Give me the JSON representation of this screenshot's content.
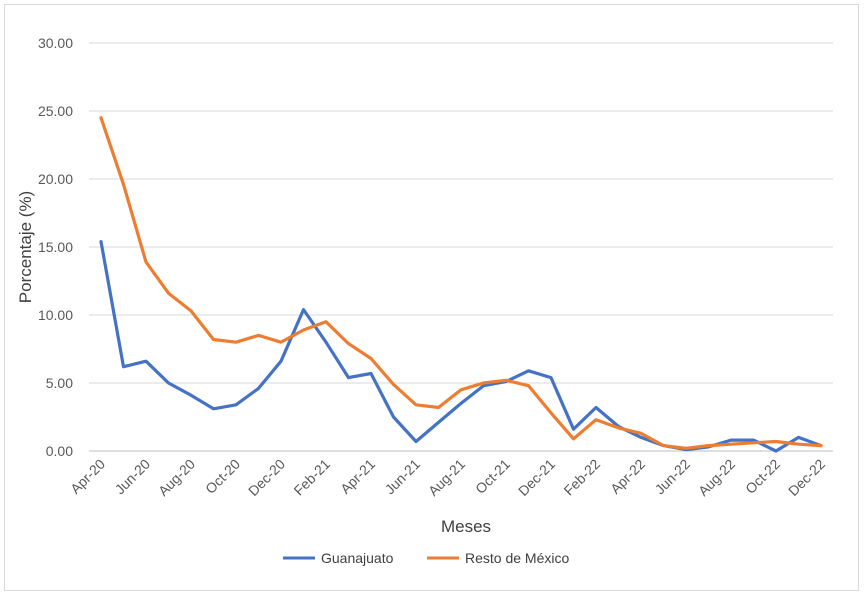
{
  "chart_data": {
    "type": "line",
    "title": "",
    "xlabel": "Meses",
    "ylabel": "Porcentaje (%)",
    "ylim": [
      0,
      30
    ],
    "yticks": [
      "0.00",
      "5.00",
      "10.00",
      "15.00",
      "20.00",
      "25.00",
      "30.00"
    ],
    "grid": true,
    "legend_position": "bottom",
    "months": [
      "Apr-20",
      "May-20",
      "Jun-20",
      "Jul-20",
      "Aug-20",
      "Sep-20",
      "Oct-20",
      "Nov-20",
      "Dec-20",
      "Jan-21",
      "Feb-21",
      "Mar-21",
      "Apr-21",
      "May-21",
      "Jun-21",
      "Jul-21",
      "Aug-21",
      "Sep-21",
      "Oct-21",
      "Nov-21",
      "Dec-21",
      "Jan-22",
      "Feb-22",
      "Mar-22",
      "Apr-22",
      "May-22",
      "Jun-22",
      "Jul-22",
      "Aug-22",
      "Sep-22",
      "Oct-22",
      "Nov-22",
      "Dec-22"
    ],
    "tick_labels": [
      "Apr-20",
      "Jun-20",
      "Aug-20",
      "Oct-20",
      "Dec-20",
      "Feb-21",
      "Apr-21",
      "Jun-21",
      "Aug-21",
      "Oct-21",
      "Dec-21",
      "Feb-22",
      "Apr-22",
      "Jun-22",
      "Aug-22",
      "Oct-22",
      "Dec-22"
    ],
    "series": [
      {
        "name": "Guanajuato",
        "color": "#4472c4",
        "values": [
          15.4,
          6.2,
          6.6,
          5.0,
          4.1,
          3.1,
          3.4,
          4.6,
          6.6,
          10.4,
          8.0,
          5.4,
          5.7,
          2.5,
          0.7,
          2.1,
          3.5,
          4.8,
          5.1,
          5.9,
          5.4,
          1.6,
          3.2,
          1.8,
          1.0,
          0.4,
          0.1,
          0.3,
          0.8,
          0.8,
          0.0,
          1.0,
          0.4
        ]
      },
      {
        "name": "Resto de México",
        "color": "#ed7d31",
        "values": [
          24.5,
          19.6,
          13.9,
          11.6,
          10.3,
          8.2,
          8.0,
          8.5,
          8.0,
          8.9,
          9.5,
          7.9,
          6.8,
          4.9,
          3.4,
          3.2,
          4.5,
          5.0,
          5.2,
          4.8,
          2.8,
          0.9,
          2.3,
          1.7,
          1.3,
          0.4,
          0.2,
          0.4,
          0.5,
          0.6,
          0.7,
          0.5,
          0.4
        ]
      }
    ]
  }
}
